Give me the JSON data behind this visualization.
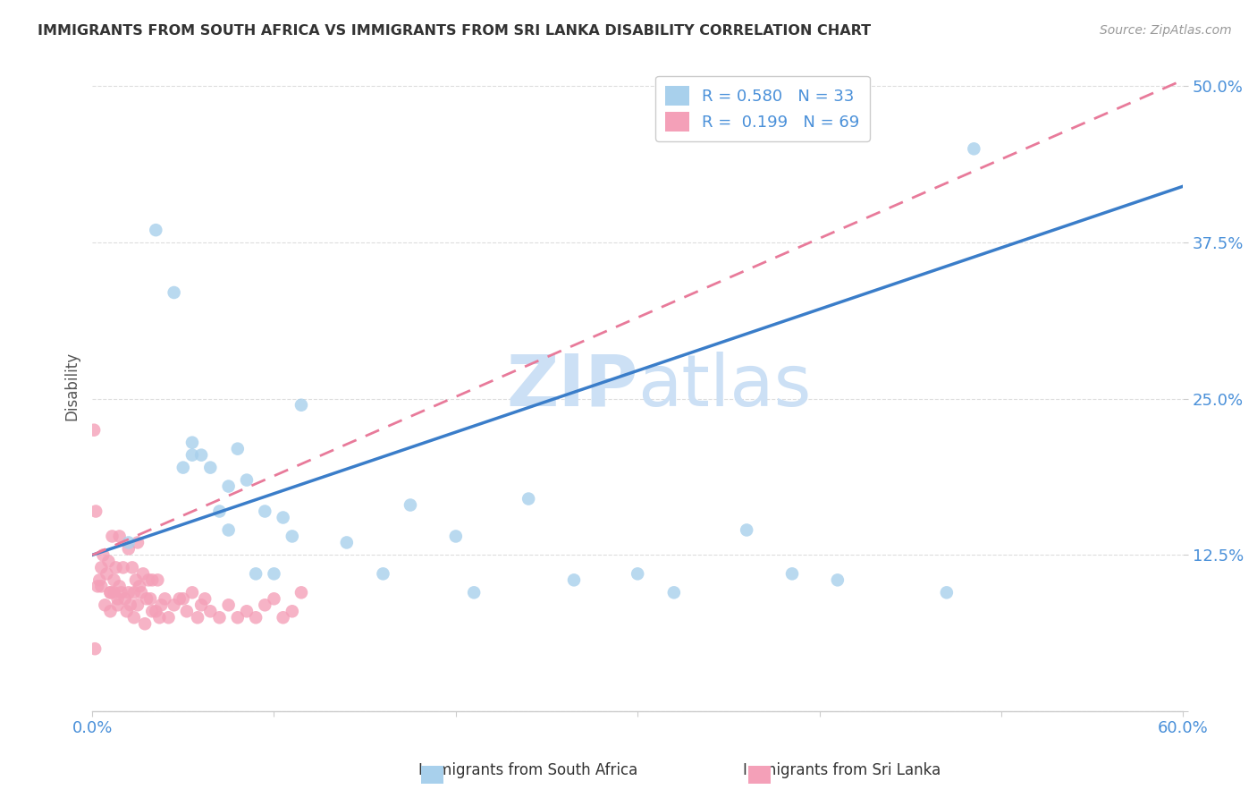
{
  "title": "IMMIGRANTS FROM SOUTH AFRICA VS IMMIGRANTS FROM SRI LANKA DISABILITY CORRELATION CHART",
  "source": "Source: ZipAtlas.com",
  "xlim": [
    0,
    60
  ],
  "ylim": [
    0,
    52
  ],
  "south_africa_R": 0.58,
  "south_africa_N": 33,
  "sri_lanka_R": 0.199,
  "sri_lanka_N": 69,
  "south_africa_color": "#a8d0ec",
  "sri_lanka_color": "#f4a0b8",
  "south_africa_line_color": "#3a7dc9",
  "sri_lanka_line_color": "#e87a9a",
  "watermark_color": "#cce0f5",
  "title_color": "#333333",
  "axis_label_color": "#4a90d9",
  "grid_color": "#dddddd",
  "south_africa_x": [
    2.0,
    3.5,
    4.5,
    5.0,
    5.5,
    5.5,
    6.0,
    6.5,
    7.0,
    7.5,
    7.5,
    8.0,
    8.5,
    9.0,
    9.5,
    10.0,
    10.5,
    11.0,
    11.5,
    14.0,
    16.0,
    17.5,
    20.0,
    21.0,
    24.0,
    26.5,
    30.0,
    32.0,
    36.0,
    38.5,
    41.0,
    47.0,
    48.5
  ],
  "south_africa_y": [
    13.5,
    38.5,
    33.5,
    19.5,
    21.5,
    20.5,
    20.5,
    19.5,
    16.0,
    14.5,
    18.0,
    21.0,
    18.5,
    11.0,
    16.0,
    11.0,
    15.5,
    14.0,
    24.5,
    13.5,
    11.0,
    16.5,
    14.0,
    9.5,
    17.0,
    10.5,
    11.0,
    9.5,
    14.5,
    11.0,
    10.5,
    9.5,
    45.0
  ],
  "sri_lanka_x": [
    0.1,
    0.2,
    0.3,
    0.4,
    0.5,
    0.5,
    0.6,
    0.7,
    0.8,
    0.9,
    1.0,
    1.0,
    1.0,
    1.1,
    1.2,
    1.2,
    1.3,
    1.4,
    1.4,
    1.5,
    1.5,
    1.6,
    1.7,
    1.8,
    1.9,
    2.0,
    2.0,
    2.1,
    2.2,
    2.3,
    2.3,
    2.4,
    2.5,
    2.5,
    2.6,
    2.7,
    2.8,
    2.9,
    3.0,
    3.1,
    3.2,
    3.3,
    3.3,
    3.5,
    3.6,
    3.7,
    3.8,
    4.0,
    4.2,
    4.5,
    4.8,
    5.0,
    5.2,
    5.5,
    5.8,
    6.0,
    6.2,
    6.5,
    7.0,
    7.5,
    8.0,
    8.5,
    9.0,
    9.5,
    10.0,
    10.5,
    11.0,
    11.5,
    0.15
  ],
  "sri_lanka_y": [
    22.5,
    16.0,
    10.0,
    10.5,
    11.5,
    10.0,
    12.5,
    8.5,
    11.0,
    12.0,
    9.5,
    8.0,
    9.5,
    14.0,
    10.5,
    9.5,
    11.5,
    8.5,
    9.0,
    14.0,
    10.0,
    9.5,
    11.5,
    9.0,
    8.0,
    13.0,
    9.5,
    8.5,
    11.5,
    7.5,
    9.5,
    10.5,
    13.5,
    8.5,
    10.0,
    9.5,
    11.0,
    7.0,
    9.0,
    10.5,
    9.0,
    8.0,
    10.5,
    8.0,
    10.5,
    7.5,
    8.5,
    9.0,
    7.5,
    8.5,
    9.0,
    9.0,
    8.0,
    9.5,
    7.5,
    8.5,
    9.0,
    8.0,
    7.5,
    8.5,
    7.5,
    8.0,
    7.5,
    8.5,
    9.0,
    7.5,
    8.0,
    9.5,
    5.0
  ],
  "sa_line_x0": 0,
  "sa_line_y0": 12.5,
  "sa_line_x1": 60,
  "sa_line_y1": 42.0,
  "sl_line_x0": 0,
  "sl_line_y0": 12.5,
  "sl_line_x1": 60,
  "sl_line_y1": 50.5
}
